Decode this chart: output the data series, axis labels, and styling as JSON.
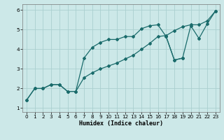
{
  "xlabel": "Humidex (Indice chaleur)",
  "xlim": [
    -0.5,
    23.5
  ],
  "ylim": [
    0.8,
    6.3
  ],
  "bg_color": "#cce8e8",
  "line_color": "#1a6b6b",
  "grid_color": "#aacfcf",
  "xticks": [
    0,
    1,
    2,
    3,
    4,
    5,
    6,
    7,
    8,
    9,
    10,
    11,
    12,
    13,
    14,
    15,
    16,
    17,
    18,
    19,
    20,
    21,
    22,
    23
  ],
  "yticks": [
    1,
    2,
    3,
    4,
    5,
    6
  ],
  "line1_x": [
    0,
    1,
    2,
    3,
    4,
    5,
    6,
    7,
    8,
    9,
    10,
    11,
    12,
    13,
    14,
    15,
    16,
    17,
    18,
    19,
    20,
    21,
    22,
    23
  ],
  "line1_y": [
    1.4,
    2.0,
    2.0,
    2.2,
    2.2,
    1.85,
    1.85,
    2.55,
    2.8,
    3.0,
    3.15,
    3.3,
    3.5,
    3.7,
    4.0,
    4.3,
    4.65,
    4.7,
    4.95,
    5.15,
    5.25,
    5.25,
    5.45,
    5.95
  ],
  "line2_x": [
    0,
    1,
    2,
    3,
    4,
    5,
    6,
    7,
    8,
    9,
    10,
    11,
    12,
    13,
    14,
    15,
    16,
    17,
    18,
    19
  ],
  "line2_y": [
    1.4,
    2.0,
    2.0,
    2.2,
    2.2,
    1.85,
    1.85,
    3.55,
    4.1,
    4.35,
    4.5,
    4.5,
    4.65,
    4.65,
    5.05,
    5.2,
    5.25,
    4.65,
    3.45,
    3.55
  ],
  "line3_x": [
    17,
    18,
    19,
    20,
    21,
    22,
    23
  ],
  "line3_y": [
    4.65,
    3.45,
    3.55,
    5.2,
    4.55,
    5.3,
    5.95
  ]
}
